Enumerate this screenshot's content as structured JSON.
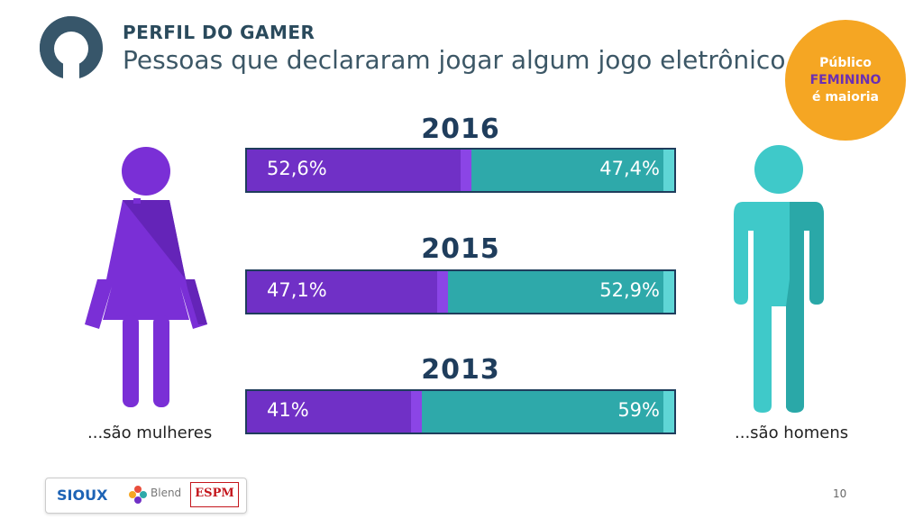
{
  "header": {
    "kicker": "PERFIL DO GAMER",
    "title": "Pessoas que declararam jogar algum jogo eletrônico"
  },
  "badge": {
    "line1": "Público",
    "line2": "FEMININO",
    "line3": "é maioria"
  },
  "captions": {
    "women": "...são mulheres",
    "men": "...são homens"
  },
  "colors": {
    "female": "#7030c6",
    "male": "#2ea9aa",
    "badge": "#f5a623",
    "title": "#1f3d5c"
  },
  "chart_data": {
    "type": "bar",
    "orientation": "horizontal-stacked-100",
    "title": "Pessoas que declararam jogar algum jogo eletrônico",
    "categories": [
      "2016",
      "2015",
      "2013"
    ],
    "series": [
      {
        "name": "Mulheres",
        "values": [
          52.6,
          47.1,
          41
        ],
        "labels": [
          "52,6%",
          "47,1%",
          "41%"
        ]
      },
      {
        "name": "Homens",
        "values": [
          47.4,
          52.9,
          59
        ],
        "labels": [
          "47,4%",
          "52,9%",
          "59%"
        ]
      }
    ],
    "xlim": [
      0,
      100
    ],
    "unit": "%"
  },
  "footer": {
    "brand1": "SIOUX",
    "brand2": "Blend",
    "brand3": "ESPM",
    "page_number": "10"
  }
}
